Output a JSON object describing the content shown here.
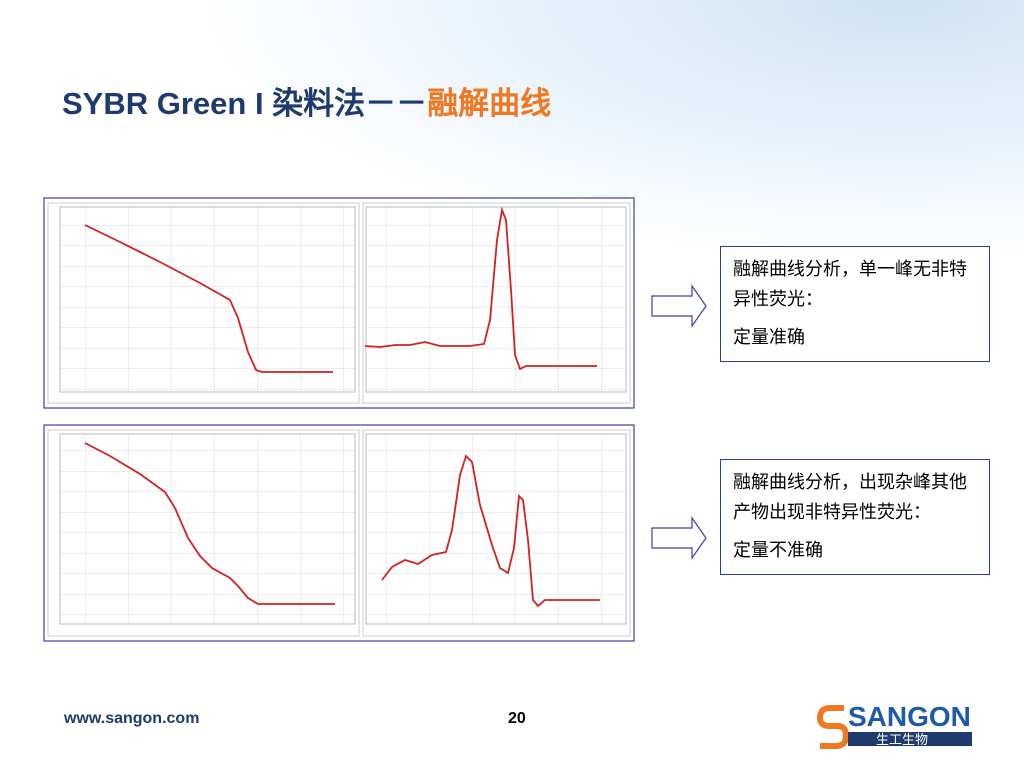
{
  "header": {
    "title": "SYBR Green I 染料法－－",
    "title_highlight": "融解曲线"
  },
  "notes": [
    {
      "lines": [
        "融解曲线分析，单一峰无非特异性荧光：",
        "定量准确"
      ]
    },
    {
      "lines": [
        "融解曲线分析，出现杂峰其他产物出现非特异性荧光：",
        "定量不准确"
      ]
    }
  ],
  "footer": {
    "url": "www.sangon.com",
    "page": "20",
    "logo": "SANGON",
    "logo_cn": "生工生物"
  }
}
